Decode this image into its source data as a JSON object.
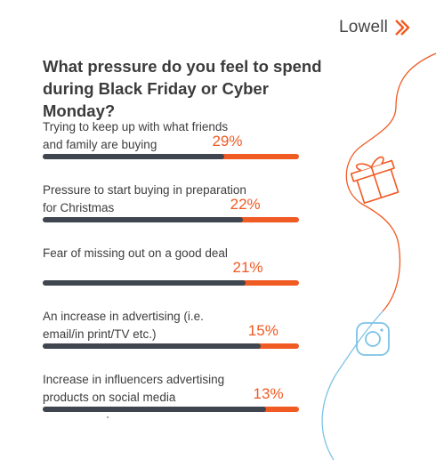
{
  "brand": {
    "name": "Lowell",
    "accent": "#f05a23",
    "dark": "#3f4650",
    "secondary": "#7cc3e6"
  },
  "chart_data": {
    "type": "bar",
    "orientation": "horizontal",
    "title": "What pressure do you feel to spend during Black Friday or Cyber Monday?",
    "categories": [
      "Trying to keep up with what friends and family are buying",
      "Pressure to start buying in preparation for Christmas",
      "Fear of missing out on a good deal",
      "An increase in advertising (i.e. email/in print/TV etc.)",
      "Increase in influencers advertising products on social media"
    ],
    "labels": [
      "29%",
      "22%",
      "21%",
      "15%",
      "13%"
    ],
    "values": [
      29,
      22,
      21,
      15,
      13
    ],
    "unit": "%",
    "ylim": [
      0,
      100
    ],
    "colors": {
      "share": "#f05a23",
      "remainder": "#3f4650"
    },
    "grid": false,
    "legend": "none"
  },
  "icons": [
    "lowell-chevron-icon",
    "gift-icon",
    "instagram-icon"
  ]
}
